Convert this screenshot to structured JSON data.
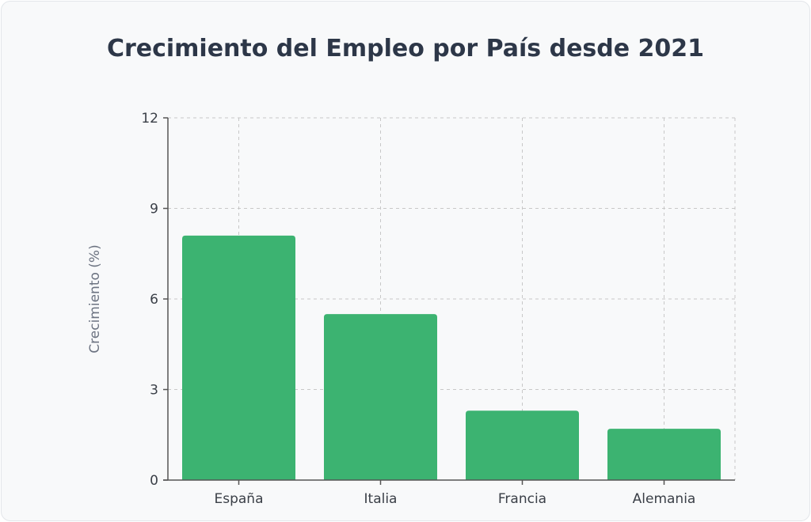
{
  "chart_data": {
    "type": "bar",
    "title": "Crecimiento del Empleo por País desde 2021",
    "xlabel": "",
    "ylabel": "Crecimiento (%)",
    "categories": [
      "España",
      "Italia",
      "Francia",
      "Alemania"
    ],
    "values": [
      8.1,
      5.5,
      2.3,
      1.7
    ],
    "ylim": [
      0,
      12
    ],
    "yticks": [
      "0",
      "3",
      "6",
      "9",
      "12"
    ],
    "grid": true,
    "bar_color": "#3cb371",
    "legend": "none"
  }
}
